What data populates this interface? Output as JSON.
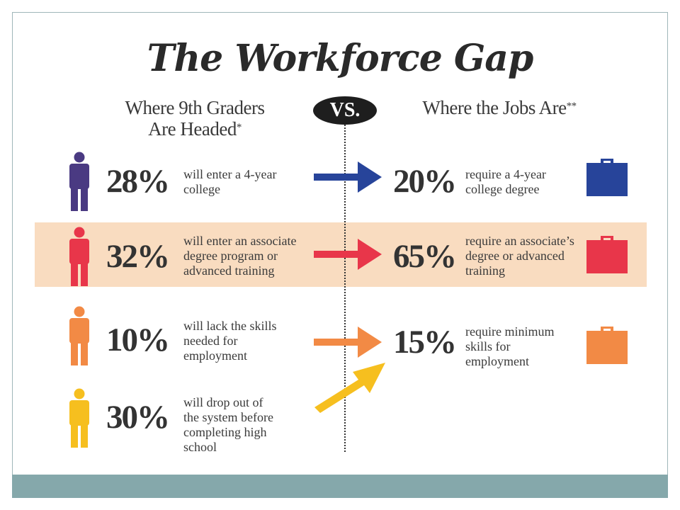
{
  "title": "The Workforce Gap",
  "left_heading": {
    "line1": "Where 9th Graders",
    "line2": "Are Headed",
    "mark": "*"
  },
  "vs_label": "VS.",
  "right_heading": {
    "text": "Where the Jobs Are",
    "mark": "**"
  },
  "left_rows": [
    {
      "percent": "28%",
      "lines": [
        "will enter a 4-year",
        "college"
      ],
      "color": "#4a3a82"
    },
    {
      "percent": "32%",
      "lines": [
        "will enter an associate",
        "degree program or",
        "advanced training"
      ],
      "color": "#e8364a"
    },
    {
      "percent": "10%",
      "lines": [
        "will lack the skills",
        "needed for",
        "employment"
      ],
      "color": "#f28a45"
    },
    {
      "percent": "30%",
      "lines": [
        "will drop out of",
        "the system before",
        "completing high",
        "school"
      ],
      "color": "#f6bf1f"
    }
  ],
  "right_rows": [
    {
      "percent": "20%",
      "lines": [
        "require a 4-year",
        "college degree"
      ],
      "color": "#27449a"
    },
    {
      "percent": "65%",
      "lines": [
        "require an associate’s",
        "degree or advanced",
        "training"
      ],
      "color": "#e8364a"
    },
    {
      "percent": "15%",
      "lines": [
        "require minimum",
        "skills for",
        "employment"
      ],
      "color": "#f28a45"
    }
  ],
  "arrow_colors": [
    "#27449a",
    "#e8364a",
    "#f28a45",
    "#f6bf1f"
  ],
  "band_color": "#f9dcc0",
  "footer_color": "#85a8ab"
}
